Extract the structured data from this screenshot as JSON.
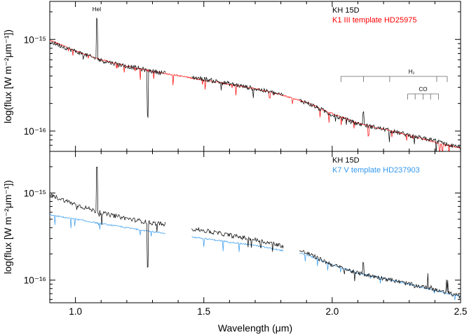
{
  "chart_data": [
    {
      "type": "line",
      "panel": "top",
      "ylabel": "log(flux [W m⁻²μm⁻¹])",
      "yscale": "log",
      "ylim": [
        6e-17,
        2.6e-15
      ],
      "xlim": [
        0.9,
        2.5
      ],
      "y_ticks": [
        {
          "value": 1e-15,
          "label": "10⁻¹⁵"
        },
        {
          "value": 1e-16,
          "label": "10⁻¹⁶"
        }
      ],
      "legend": {
        "position": "top-right",
        "entries": [
          {
            "text": "KH 15D",
            "color": "#000000"
          },
          {
            "text": "K1 III template HD25975",
            "color": "#ff0000"
          }
        ]
      },
      "series": [
        {
          "name": "KH 15D",
          "color": "#000000",
          "x": [
            0.9,
            1.0,
            1.1,
            1.2,
            1.3,
            1.5,
            1.7,
            1.8,
            1.9,
            2.0,
            2.1,
            2.2,
            2.3,
            2.4,
            2.5
          ],
          "y": [
            9.5e-16,
            7.4e-16,
            5.9e-16,
            5.1e-16,
            4.5e-16,
            3.7e-16,
            2.9e-16,
            2.5e-16,
            2.05e-16,
            1.5e-16,
            1.2e-16,
            1.05e-16,
            9e-17,
            7.8e-17,
            6.5e-17
          ]
        },
        {
          "name": "K1 III template HD25975",
          "color": "#ff0000",
          "x": [
            0.9,
            1.0,
            1.1,
            1.2,
            1.3,
            1.5,
            1.7,
            1.8,
            1.9,
            2.0,
            2.1,
            2.2,
            2.3,
            2.4,
            2.5
          ],
          "y": [
            9.8e-16,
            7.5e-16,
            6e-16,
            5.1e-16,
            4.5e-16,
            3.6e-16,
            2.9e-16,
            2.5e-16,
            2.05e-16,
            1.55e-16,
            1.22e-16,
            1.05e-16,
            9e-17,
            7.6e-17,
            6.5e-17
          ]
        }
      ],
      "annotations": [
        {
          "text": "HeI",
          "x": 1.083
        },
        {
          "text": "H₂"
        },
        {
          "text": "CO"
        }
      ],
      "h2_lines": [
        2.034,
        2.122,
        2.224,
        2.407,
        2.448
      ],
      "co_lines": [
        2.294,
        2.323,
        2.354,
        2.383,
        2.414
      ]
    },
    {
      "type": "line",
      "panel": "bottom",
      "ylabel": "log(flux [W m⁻²μm⁻¹])",
      "xlabel": "Wavelength (μm)",
      "yscale": "log",
      "ylim": [
        5.5e-17,
        3e-15
      ],
      "xlim": [
        0.9,
        2.5
      ],
      "x_ticks": [
        {
          "value": 1.0,
          "label": "1.0"
        },
        {
          "value": 1.5,
          "label": "1.5"
        },
        {
          "value": 2.0,
          "label": "2.0"
        },
        {
          "value": 2.5,
          "label": "2.5"
        }
      ],
      "y_ticks": [
        {
          "value": 1e-15,
          "label": "10⁻¹⁵"
        },
        {
          "value": 1e-16,
          "label": "10⁻¹⁶"
        }
      ],
      "legend": {
        "position": "top-right",
        "entries": [
          {
            "text": "KH 15D",
            "color": "#000000"
          },
          {
            "text": "K7 V template HD237903",
            "color": "#3399ee"
          }
        ]
      },
      "series": [
        {
          "name": "KH 15D",
          "color": "#000000",
          "x": [
            0.9,
            1.0,
            1.1,
            1.2,
            1.3,
            1.35,
            1.5,
            1.7,
            1.8,
            1.9,
            2.0,
            2.1,
            2.2,
            2.3,
            2.4,
            2.5
          ],
          "y": [
            9.5e-16,
            7.4e-16,
            5.9e-16,
            5.1e-16,
            4.5e-16,
            4.4e-16,
            3.7e-16,
            2.9e-16,
            2.5e-16,
            2.05e-16,
            1.5e-16,
            1.2e-16,
            1.05e-16,
            9e-17,
            7.8e-17,
            6.5e-17
          ]
        },
        {
          "name": "K7 V template HD237903",
          "color": "#3399ee",
          "x": [
            0.9,
            1.0,
            1.1,
            1.2,
            1.3,
            1.5,
            1.7,
            1.8,
            1.9,
            2.0,
            2.1,
            2.2,
            2.3,
            2.4,
            2.5
          ],
          "y": [
            5.6e-16,
            5e-16,
            4.45e-16,
            4e-16,
            3.6e-16,
            3e-16,
            2.5e-16,
            2.2e-16,
            1.95e-16,
            1.5e-16,
            1.2e-16,
            1.05e-16,
            9e-17,
            7.6e-17,
            6.5e-17
          ]
        }
      ],
      "atmospheric_gaps": [
        [
          1.35,
          1.45
        ],
        [
          1.81,
          1.87
        ]
      ]
    }
  ]
}
